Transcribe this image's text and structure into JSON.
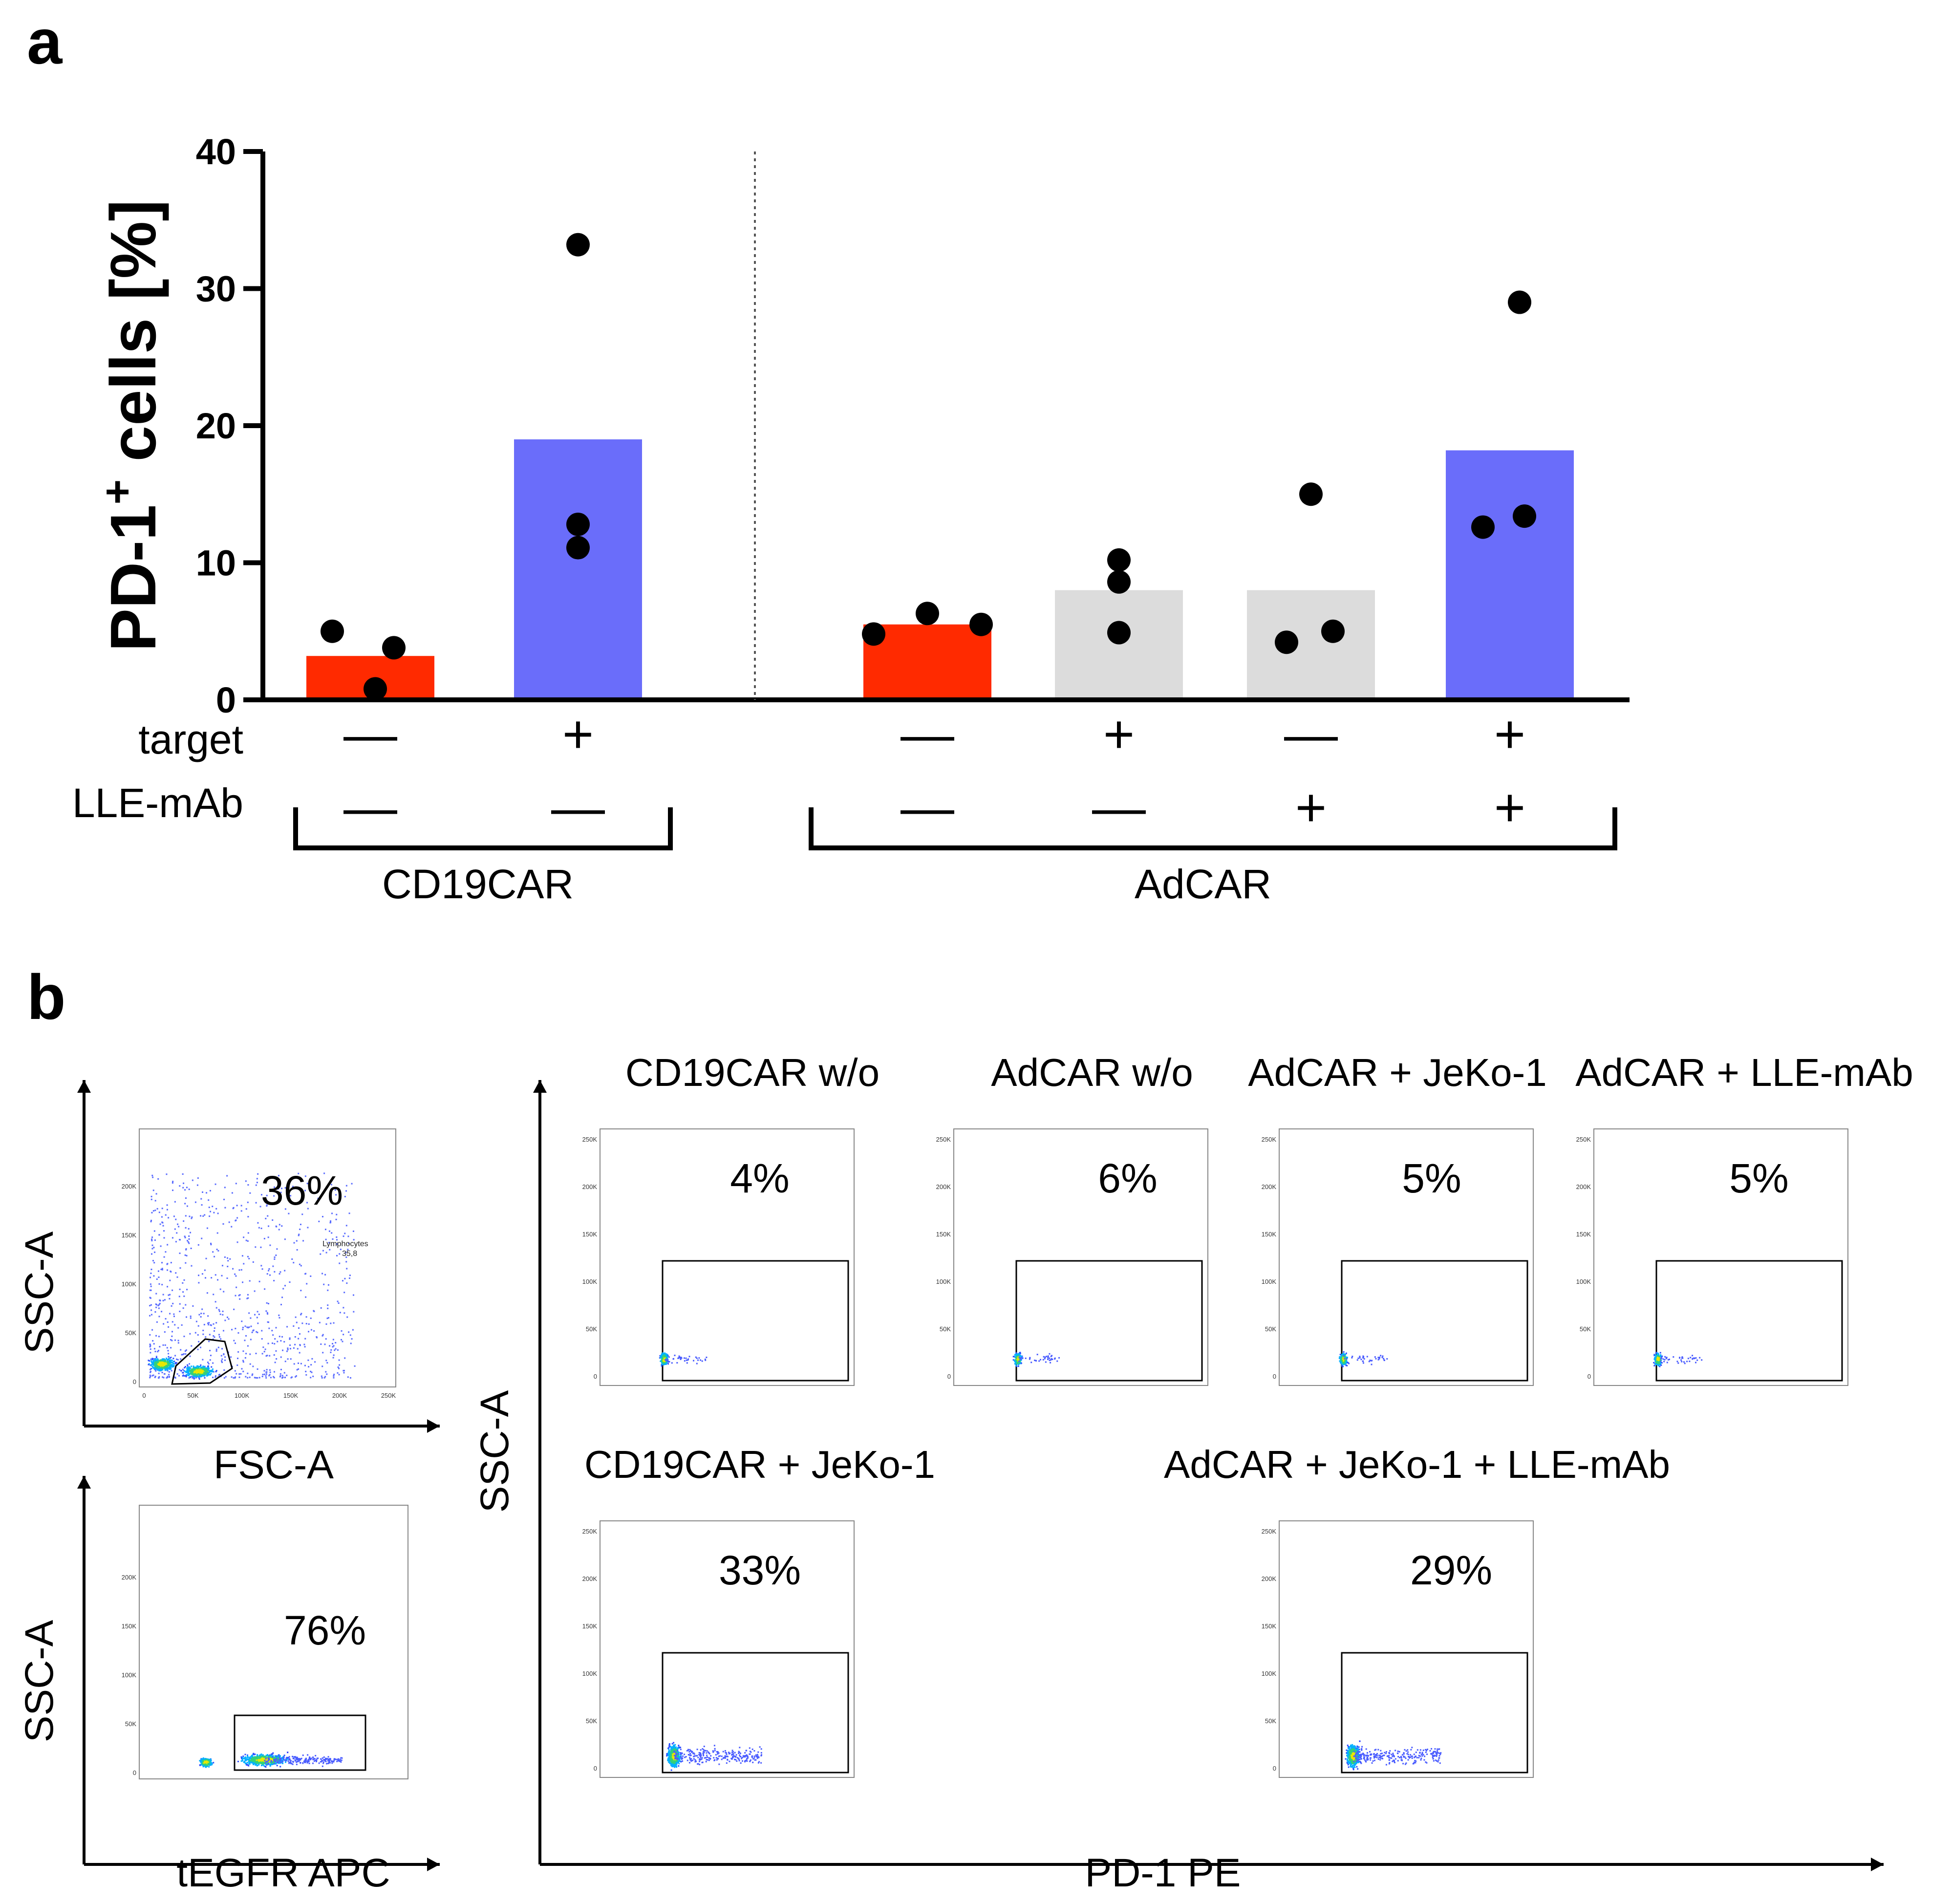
{
  "panel_a": {
    "letter": "a",
    "colors": {
      "red": "#ff2a00",
      "blue": "#6a6dfa",
      "grey": "#dcdcdc",
      "dot": "#000000"
    },
    "chart_data": {
      "type": "bar",
      "title": "",
      "xlabel": "",
      "ylabel": "PD-1⁺ cells [%]",
      "ylabel_main": "PD-1",
      "ylabel_sup": "+",
      "ylabel_rest": " cells [%]",
      "ylim": [
        0,
        40
      ],
      "yticks": [
        0,
        10,
        20,
        30,
        40
      ],
      "ytick_labels": [
        "0",
        "10",
        "20",
        "30",
        "40"
      ],
      "categories": [
        "CD19CAR target− LLE-mAb−",
        "CD19CAR target+ LLE-mAb−",
        "AdCAR target− LLE-mAb−",
        "AdCAR target+ LLE-mAb−",
        "AdCAR target− LLE-mAb+",
        "AdCAR target+ LLE-mAb+"
      ],
      "values": [
        3.2,
        19.0,
        5.5,
        8.0,
        8.0,
        18.2
      ],
      "bar_colors": [
        "red",
        "blue",
        "red",
        "grey",
        "grey",
        "blue"
      ],
      "points": [
        [
          5.0,
          3.8,
          0.8
        ],
        [
          33.2,
          12.8,
          11.1
        ],
        [
          4.8,
          6.3,
          5.5
        ],
        [
          10.2,
          8.6,
          4.9
        ],
        [
          15.0,
          4.2,
          5.0
        ],
        [
          29.0,
          12.6,
          13.4
        ]
      ],
      "target": [
        "—",
        "+",
        "—",
        "+",
        "—",
        "+"
      ],
      "lle_mab": [
        "—",
        "—",
        "—",
        "—",
        "+",
        "+"
      ],
      "row_labels": {
        "target": "target",
        "lle_mab": "LLE-mAb"
      },
      "groups": [
        {
          "label": "CD19CAR",
          "bars": [
            0,
            1
          ]
        },
        {
          "label": "AdCAR",
          "bars": [
            2,
            3,
            4,
            5
          ]
        }
      ],
      "divider": "dotted line between CD19CAR and AdCAR groups"
    }
  },
  "panel_b": {
    "letter": "b",
    "chart_data": [
      {
        "type": "scatter",
        "title": "",
        "xlabel": "FSC-A",
        "ylabel": "SSC-A",
        "percent": "36%",
        "gate_label": "Lymphocytes",
        "gate_value": "35,8",
        "x_tick_labels": [
          "0",
          "50K",
          "100K",
          "150K",
          "200K",
          "250K"
        ],
        "y_tick_labels": [
          "0",
          "50K",
          "100K",
          "150K",
          "200K"
        ]
      },
      {
        "type": "scatter",
        "title": "",
        "xlabel": "tEGFR APC",
        "ylabel": "SSC-A",
        "percent": "76%",
        "y_tick_labels": [
          "0",
          "50K",
          "100K",
          "150K",
          "200K"
        ]
      },
      {
        "type": "scatter",
        "title": "CD19CAR w/o",
        "percent": "4%"
      },
      {
        "type": "scatter",
        "title": "AdCAR w/o",
        "percent": "6%"
      },
      {
        "type": "scatter",
        "title": "AdCAR + JeKo-1",
        "percent": "5%"
      },
      {
        "type": "scatter",
        "title": "AdCAR + LLE-mAb",
        "percent": "5%"
      },
      {
        "type": "scatter",
        "title": "CD19CAR + JeKo-1",
        "percent": "33%"
      },
      {
        "type": "scatter",
        "title": "AdCAR + JeKo-1 + LLE-mAb",
        "percent": "29%"
      }
    ],
    "shared_axes": {
      "xlabel": "PD-1 PE",
      "ylabel": "SSC-A"
    },
    "pd1_y_tick_labels": [
      "0",
      "50K",
      "100K",
      "150K",
      "200K",
      "250K"
    ]
  }
}
